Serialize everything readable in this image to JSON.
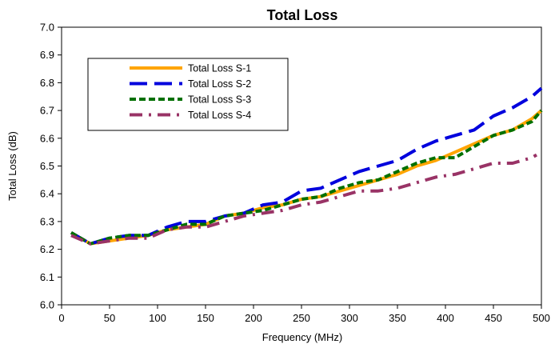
{
  "chart_data": {
    "type": "line",
    "title": "Total Loss",
    "xlabel": "Frequency (MHz)",
    "ylabel": "Total Loss (dB)",
    "xlim": [
      0,
      500
    ],
    "ylim": [
      6.0,
      7.0
    ],
    "xticks": [
      0,
      50,
      100,
      150,
      200,
      250,
      300,
      350,
      400,
      450,
      500
    ],
    "yticks": [
      "6.0",
      "6.1",
      "6.2",
      "6.3",
      "6.4",
      "6.5",
      "6.6",
      "6.7",
      "6.8",
      "6.9",
      "7.0"
    ],
    "grid": false,
    "legend_position": "upper-left inside plot",
    "series": [
      {
        "name": "Total Loss S-1",
        "color": "#FFA500",
        "dash": "solid",
        "points": [
          [
            10,
            6.26
          ],
          [
            30,
            6.22
          ],
          [
            50,
            6.23
          ],
          [
            70,
            6.24
          ],
          [
            90,
            6.25
          ],
          [
            110,
            6.27
          ],
          [
            130,
            6.28
          ],
          [
            150,
            6.29
          ],
          [
            170,
            6.32
          ],
          [
            190,
            6.33
          ],
          [
            210,
            6.35
          ],
          [
            230,
            6.36
          ],
          [
            250,
            6.38
          ],
          [
            270,
            6.39
          ],
          [
            290,
            6.41
          ],
          [
            310,
            6.43
          ],
          [
            330,
            6.45
          ],
          [
            350,
            6.47
          ],
          [
            370,
            6.5
          ],
          [
            390,
            6.52
          ],
          [
            410,
            6.55
          ],
          [
            430,
            6.58
          ],
          [
            450,
            6.61
          ],
          [
            470,
            6.63
          ],
          [
            490,
            6.67
          ],
          [
            500,
            6.7
          ]
        ]
      },
      {
        "name": "Total Loss S-2",
        "color": "#0000DD",
        "dash": "long-dash",
        "points": [
          [
            10,
            6.26
          ],
          [
            30,
            6.22
          ],
          [
            50,
            6.24
          ],
          [
            70,
            6.25
          ],
          [
            90,
            6.25
          ],
          [
            110,
            6.28
          ],
          [
            130,
            6.3
          ],
          [
            150,
            6.3
          ],
          [
            170,
            6.32
          ],
          [
            190,
            6.33
          ],
          [
            210,
            6.36
          ],
          [
            230,
            6.37
          ],
          [
            250,
            6.41
          ],
          [
            270,
            6.42
          ],
          [
            290,
            6.45
          ],
          [
            310,
            6.48
          ],
          [
            330,
            6.5
          ],
          [
            350,
            6.52
          ],
          [
            370,
            6.56
          ],
          [
            390,
            6.59
          ],
          [
            410,
            6.61
          ],
          [
            430,
            6.63
          ],
          [
            450,
            6.68
          ],
          [
            470,
            6.71
          ],
          [
            490,
            6.75
          ],
          [
            500,
            6.78
          ]
        ]
      },
      {
        "name": "Total Loss S-3",
        "color": "#007000",
        "dash": "short-dash",
        "points": [
          [
            10,
            6.26
          ],
          [
            30,
            6.22
          ],
          [
            50,
            6.24
          ],
          [
            70,
            6.25
          ],
          [
            90,
            6.25
          ],
          [
            110,
            6.27
          ],
          [
            130,
            6.29
          ],
          [
            150,
            6.29
          ],
          [
            170,
            6.32
          ],
          [
            190,
            6.33
          ],
          [
            210,
            6.34
          ],
          [
            230,
            6.36
          ],
          [
            250,
            6.38
          ],
          [
            270,
            6.39
          ],
          [
            290,
            6.42
          ],
          [
            310,
            6.44
          ],
          [
            330,
            6.45
          ],
          [
            350,
            6.48
          ],
          [
            370,
            6.51
          ],
          [
            390,
            6.53
          ],
          [
            410,
            6.53
          ],
          [
            430,
            6.57
          ],
          [
            450,
            6.61
          ],
          [
            470,
            6.63
          ],
          [
            490,
            6.66
          ],
          [
            500,
            6.7
          ]
        ]
      },
      {
        "name": "Total Loss S-4",
        "color": "#993366",
        "dash": "dash-dot",
        "points": [
          [
            10,
            6.25
          ],
          [
            30,
            6.22
          ],
          [
            50,
            6.23
          ],
          [
            70,
            6.24
          ],
          [
            90,
            6.24
          ],
          [
            110,
            6.27
          ],
          [
            130,
            6.28
          ],
          [
            150,
            6.28
          ],
          [
            170,
            6.3
          ],
          [
            190,
            6.32
          ],
          [
            210,
            6.33
          ],
          [
            230,
            6.34
          ],
          [
            250,
            6.36
          ],
          [
            270,
            6.37
          ],
          [
            290,
            6.39
          ],
          [
            310,
            6.41
          ],
          [
            330,
            6.41
          ],
          [
            350,
            6.42
          ],
          [
            370,
            6.44
          ],
          [
            390,
            6.46
          ],
          [
            410,
            6.47
          ],
          [
            430,
            6.49
          ],
          [
            450,
            6.51
          ],
          [
            470,
            6.51
          ],
          [
            490,
            6.53
          ],
          [
            495,
            6.54
          ]
        ]
      }
    ]
  }
}
